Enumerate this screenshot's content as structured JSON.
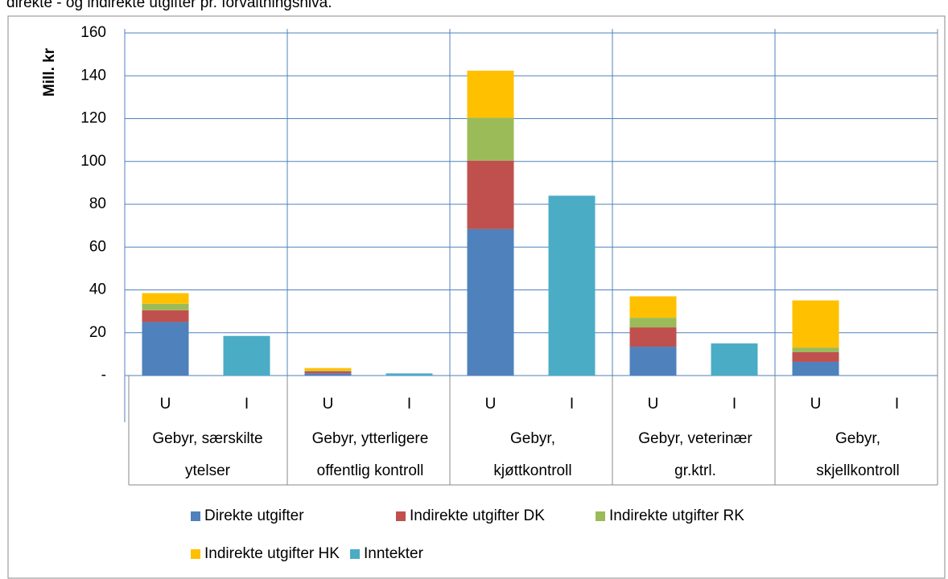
{
  "chart_data": {
    "type": "stacked_bar",
    "title": "direkte - og indirekte utgifter pr. forvaltningsnivå.",
    "y_label": "Mill. kr",
    "categories": [
      "U",
      "I",
      "U",
      "I",
      "U",
      "I",
      "U",
      "I",
      "U",
      "I"
    ],
    "groups": [
      [
        "Gebyr, særskilte",
        "ytelser"
      ],
      [
        "Gebyr, ytterligere",
        "offentlig kontroll"
      ],
      [
        "Gebyr,",
        "kjøttkontroll"
      ],
      [
        "Gebyr, veterinær",
        "gr.ktrl."
      ],
      [
        "Gebyr,",
        "skjellkontroll"
      ]
    ],
    "series": [
      {
        "name": "Direkte utgifter",
        "color": "#4f81bd",
        "values": [
          25,
          null,
          1,
          null,
          68.4,
          null,
          13.5,
          null,
          6.4,
          null
        ]
      },
      {
        "name": "Indirekte utgifter DK",
        "color": "#c0504d",
        "values": [
          5.5,
          null,
          1,
          null,
          32,
          null,
          9,
          null,
          4.5,
          null
        ]
      },
      {
        "name": "Indirekte utgifter RK",
        "color": "#9bbb59",
        "values": [
          3,
          null,
          0.3,
          null,
          20,
          null,
          4.5,
          null,
          2.2,
          null
        ]
      },
      {
        "name": "Indirekte utgifter HK",
        "color": "#ffc000",
        "values": [
          5,
          null,
          1.2,
          null,
          22,
          null,
          10,
          null,
          22,
          null
        ]
      },
      {
        "name": "Inntekter",
        "color": "#4bacc6",
        "values": [
          null,
          18.5,
          null,
          1,
          null,
          84,
          null,
          15,
          null,
          null
        ]
      }
    ],
    "ylim": [
      0,
      160
    ],
    "yticks": [
      {
        "value": 0,
        "label": "-"
      },
      20,
      40,
      60,
      80,
      100,
      120,
      140,
      160
    ],
    "grid": true
  }
}
